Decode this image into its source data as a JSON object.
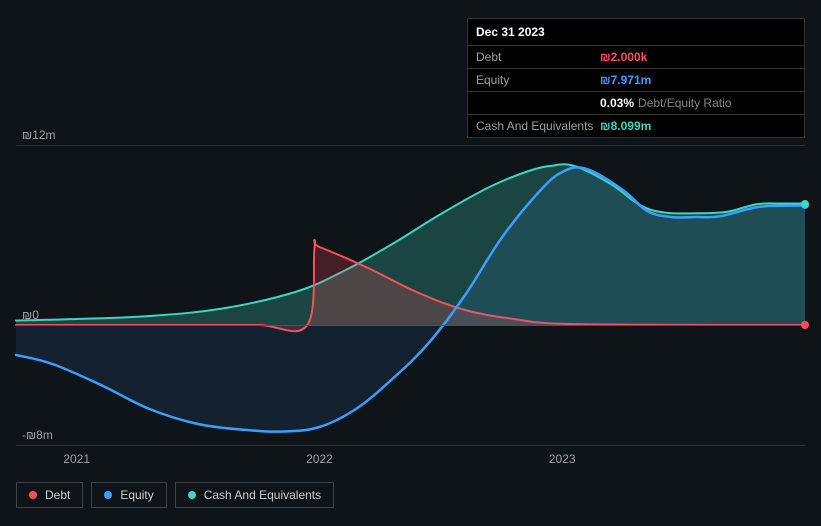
{
  "tooltip": {
    "date": "Dec 31 2023",
    "rows": [
      {
        "label": "Debt",
        "value": "₪2.000k",
        "color": "#ff4d5a"
      },
      {
        "label": "Equity",
        "value": "₪7.971m",
        "color": "#3aa0ff"
      },
      {
        "label": "",
        "value": "0.03%",
        "extra": "Debt/Equity Ratio",
        "color": "#ffffff"
      },
      {
        "label": "Cash And Equivalents",
        "value": "₪8.099m",
        "color": "#3ed6c0"
      }
    ]
  },
  "chart": {
    "type": "area",
    "ylim": [
      -8,
      12
    ],
    "ylabels": [
      {
        "v": 12,
        "text": "₪12m"
      },
      {
        "v": 0,
        "text": "₪0"
      },
      {
        "v": -8,
        "text": "-₪8m"
      }
    ],
    "x_range": [
      2020.75,
      2024.0
    ],
    "x_ticks": [
      {
        "x": 2021,
        "label": "2021"
      },
      {
        "x": 2022,
        "label": "2022"
      },
      {
        "x": 2023,
        "label": "2023"
      }
    ],
    "grid_color": "#2a3138",
    "zero_color": "#4a5158",
    "background": "#0f1419",
    "series": {
      "debt": {
        "color": "#ff4d5a",
        "fill": "rgba(255,77,90,0.22)",
        "width": 2,
        "data": [
          [
            2020.75,
            0
          ],
          [
            2021.0,
            0
          ],
          [
            2021.25,
            0
          ],
          [
            2021.5,
            0
          ],
          [
            2021.75,
            0
          ],
          [
            2021.95,
            0
          ],
          [
            2021.98,
            5.2
          ],
          [
            2022.0,
            5.2
          ],
          [
            2022.2,
            3.8
          ],
          [
            2022.4,
            2.2
          ],
          [
            2022.6,
            1.0
          ],
          [
            2022.8,
            0.4
          ],
          [
            2023.0,
            0.08
          ],
          [
            2023.5,
            0.01
          ],
          [
            2024.0,
            0.002
          ]
        ]
      },
      "equity": {
        "color": "#3aa0ff",
        "fill": "rgba(58,160,255,0.10)",
        "width": 2.5,
        "data": [
          [
            2020.75,
            -2.0
          ],
          [
            2020.9,
            -2.6
          ],
          [
            2021.1,
            -4.0
          ],
          [
            2021.3,
            -5.6
          ],
          [
            2021.5,
            -6.6
          ],
          [
            2021.7,
            -7.0
          ],
          [
            2021.85,
            -7.1
          ],
          [
            2022.0,
            -6.8
          ],
          [
            2022.15,
            -5.6
          ],
          [
            2022.3,
            -3.6
          ],
          [
            2022.45,
            -1.2
          ],
          [
            2022.6,
            2.0
          ],
          [
            2022.75,
            5.8
          ],
          [
            2022.9,
            8.8
          ],
          [
            2023.0,
            10.2
          ],
          [
            2023.1,
            10.4
          ],
          [
            2023.25,
            9.0
          ],
          [
            2023.35,
            7.6
          ],
          [
            2023.45,
            7.2
          ],
          [
            2023.55,
            7.2
          ],
          [
            2023.65,
            7.25
          ],
          [
            2023.8,
            7.85
          ],
          [
            2023.9,
            7.95
          ],
          [
            2024.0,
            7.971
          ]
        ]
      },
      "cash": {
        "color": "#3ed6c0",
        "fill": "rgba(62,214,192,0.25)",
        "width": 2,
        "data": [
          [
            2020.75,
            0.3
          ],
          [
            2021.0,
            0.4
          ],
          [
            2021.3,
            0.6
          ],
          [
            2021.6,
            1.1
          ],
          [
            2021.9,
            2.2
          ],
          [
            2022.1,
            3.6
          ],
          [
            2022.3,
            5.4
          ],
          [
            2022.5,
            7.4
          ],
          [
            2022.7,
            9.2
          ],
          [
            2022.85,
            10.2
          ],
          [
            2022.95,
            10.6
          ],
          [
            2023.05,
            10.6
          ],
          [
            2023.2,
            9.4
          ],
          [
            2023.32,
            8.0
          ],
          [
            2023.42,
            7.5
          ],
          [
            2023.55,
            7.45
          ],
          [
            2023.68,
            7.55
          ],
          [
            2023.8,
            8.05
          ],
          [
            2023.9,
            8.1
          ],
          [
            2024.0,
            8.099
          ]
        ]
      }
    },
    "end_markers": [
      {
        "x": 2024.0,
        "y": 0.002,
        "color": "#ff4d5a"
      },
      {
        "x": 2024.0,
        "y": 7.971,
        "color": "#3aa0ff"
      },
      {
        "x": 2024.0,
        "y": 8.099,
        "color": "#3ed6c0"
      }
    ]
  },
  "legend": [
    {
      "label": "Debt",
      "color": "#ff4d5a"
    },
    {
      "label": "Equity",
      "color": "#3aa0ff"
    },
    {
      "label": "Cash And Equivalents",
      "color": "#3ed6c0"
    }
  ]
}
